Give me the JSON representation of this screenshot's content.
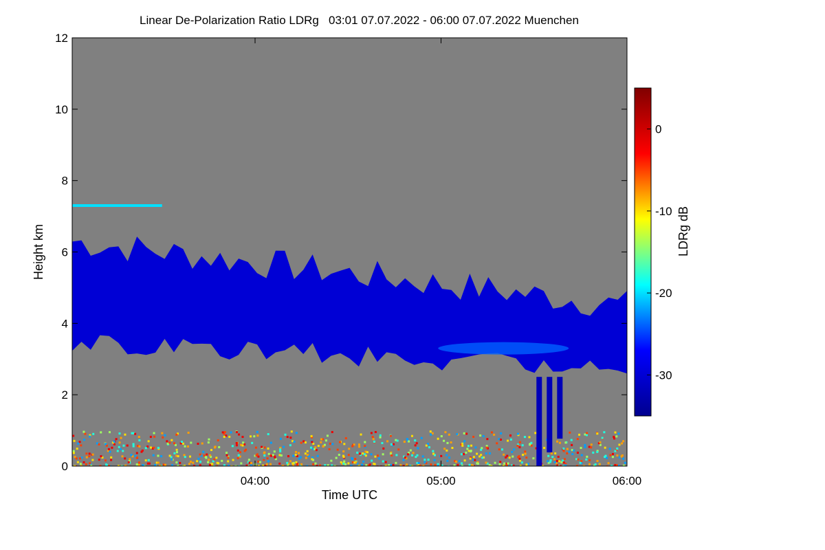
{
  "chart_data": {
    "type": "heatmap",
    "title": "Linear De-Polarization Ratio LDRg   03:01 07.07.2022 - 06:00 07.07.2022 Muenchen",
    "xlabel": "Time UTC",
    "ylabel": "Height km",
    "xlim": [
      "03:01",
      "06:00"
    ],
    "ylim": [
      0,
      12
    ],
    "x_ticks": [
      "04:00",
      "05:00",
      "06:00"
    ],
    "y_ticks": [
      0,
      2,
      4,
      6,
      8,
      10,
      12
    ],
    "background_color": "#808080",
    "colorbar": {
      "label": "LDRg dB",
      "range": [
        -35,
        5
      ],
      "ticks": [
        0,
        -10,
        -20,
        -30
      ],
      "colormap": [
        "#00008f",
        "#0000ff",
        "#00ffff",
        "#ffff00",
        "#ff0000",
        "#800000"
      ]
    },
    "features": [
      {
        "name": "ice cloud",
        "ldr_db": -30,
        "time_start": "03:01",
        "time_end": "06:00",
        "base_km_start": 3.5,
        "top_km_start": 6.3,
        "base_km_end": 2.7,
        "top_km_end": 4.5
      },
      {
        "name": "boundary layer aerosol",
        "ldr_db": -12,
        "time_start": "03:01",
        "time_end": "06:00",
        "base_km": 0,
        "top_km": 1.0
      },
      {
        "name": "thin layer",
        "ldr_db": -20,
        "height_km": 7.3,
        "time_start": "03:01",
        "time_end": "03:30"
      },
      {
        "name": "fall streaks",
        "ldr_db": -32,
        "time_start": "05:30",
        "time_end": "05:40",
        "base_km": 0,
        "top_km": 2.5
      }
    ]
  }
}
